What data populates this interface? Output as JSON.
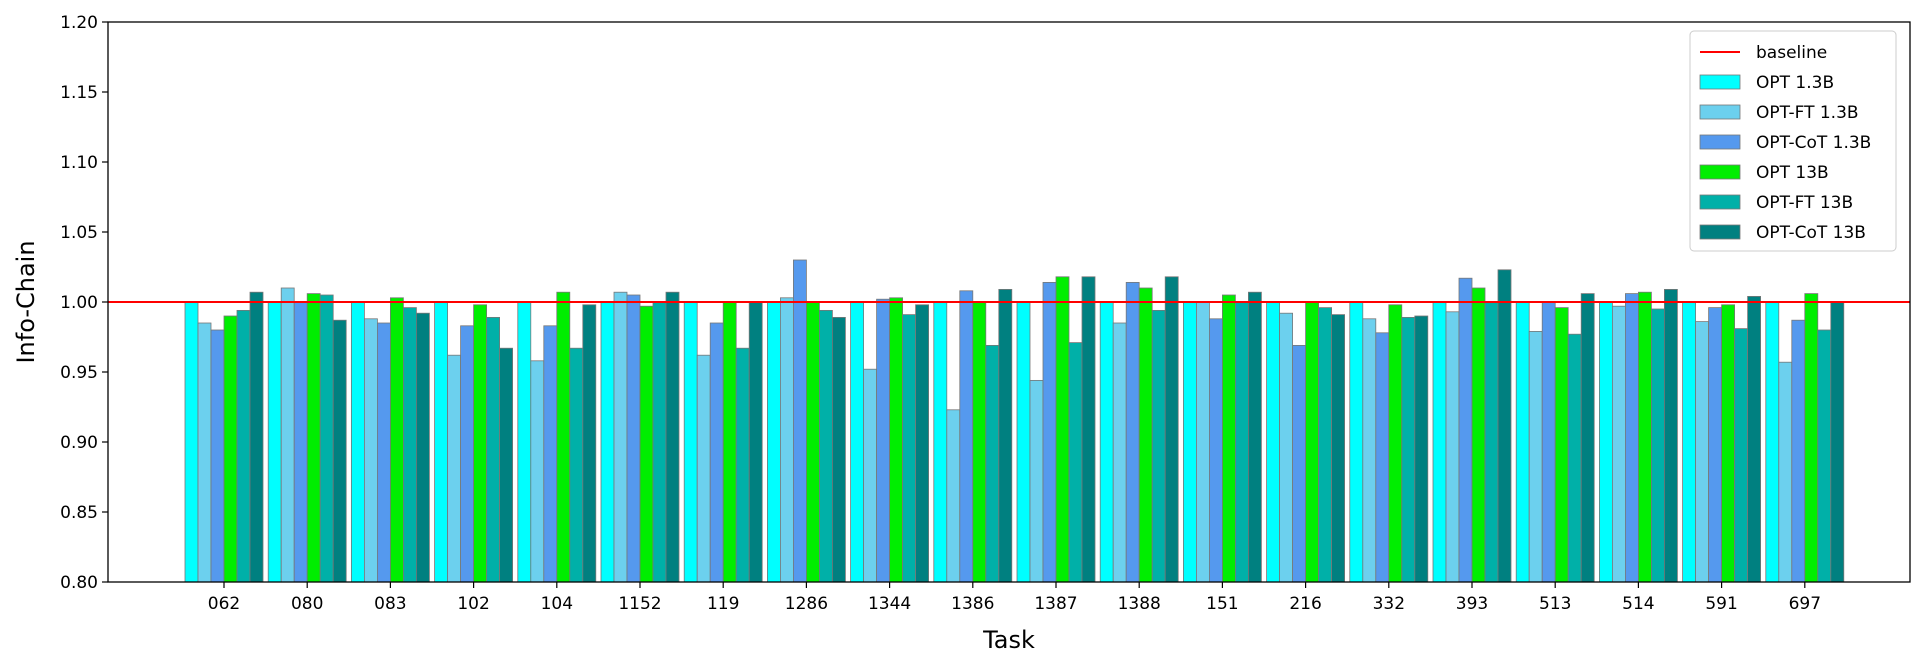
{
  "chart_data": {
    "type": "bar",
    "title": "",
    "xlabel": "Task",
    "ylabel": "Info-Chain",
    "ylim": [
      0.8,
      1.2
    ],
    "yticks": [
      0.8,
      0.85,
      0.9,
      0.95,
      1.0,
      1.05,
      1.1,
      1.15,
      1.2
    ],
    "ytick_labels": [
      "0.80",
      "0.85",
      "0.90",
      "0.95",
      "1.00",
      "1.05",
      "1.10",
      "1.15",
      "1.20"
    ],
    "grid": false,
    "legend_position": "top-right",
    "categories": [
      "062",
      "080",
      "083",
      "102",
      "104",
      "1152",
      "119",
      "1286",
      "1344",
      "1386",
      "1387",
      "1388",
      "151",
      "216",
      "332",
      "393",
      "513",
      "514",
      "591",
      "697"
    ],
    "baseline": {
      "name": "baseline",
      "value": 1.0,
      "color": "#ff0000"
    },
    "series": [
      {
        "name": "OPT 1.3B",
        "color": "#00ffff",
        "values": [
          1.0,
          1.0,
          1.0,
          1.0,
          1.0,
          1.0,
          1.0,
          1.0,
          1.0,
          1.0,
          1.0,
          1.0,
          1.0,
          1.0,
          1.0,
          1.0,
          1.0,
          1.0,
          1.0,
          1.0
        ]
      },
      {
        "name": "OPT-FT 1.3B",
        "color": "#6cd0ee",
        "values": [
          0.985,
          1.01,
          0.988,
          0.962,
          0.958,
          1.007,
          0.962,
          1.003,
          0.952,
          0.923,
          0.944,
          0.985,
          1.0,
          0.992,
          0.988,
          0.993,
          0.979,
          0.997,
          0.986,
          0.957
        ]
      },
      {
        "name": "OPT-CoT 1.3B",
        "color": "#5599ee",
        "values": [
          0.98,
          1.0,
          0.985,
          0.983,
          0.983,
          1.005,
          0.985,
          1.03,
          1.002,
          1.008,
          1.014,
          1.014,
          0.988,
          0.969,
          0.978,
          1.017,
          1.0,
          1.006,
          0.996,
          0.987
        ]
      },
      {
        "name": "OPT 13B",
        "color": "#00ee00",
        "values": [
          0.99,
          1.006,
          1.003,
          0.998,
          1.007,
          0.997,
          1.0,
          1.0,
          1.003,
          1.0,
          1.018,
          1.01,
          1.005,
          1.0,
          0.998,
          1.01,
          0.996,
          1.007,
          0.998,
          1.006
        ]
      },
      {
        "name": "OPT-FT 13B",
        "color": "#00b0a8",
        "values": [
          0.994,
          1.005,
          0.996,
          0.989,
          0.967,
          1.0,
          0.967,
          0.994,
          0.991,
          0.969,
          0.971,
          0.994,
          1.0,
          0.996,
          0.989,
          1.0,
          0.977,
          0.995,
          0.981,
          0.98
        ]
      },
      {
        "name": "OPT-CoT 13B",
        "color": "#008080",
        "values": [
          1.007,
          0.987,
          0.992,
          0.967,
          0.998,
          1.007,
          1.0,
          0.989,
          0.998,
          1.009,
          1.018,
          1.018,
          1.007,
          0.991,
          0.99,
          1.023,
          1.006,
          1.009,
          1.004,
          1.0
        ]
      }
    ]
  }
}
